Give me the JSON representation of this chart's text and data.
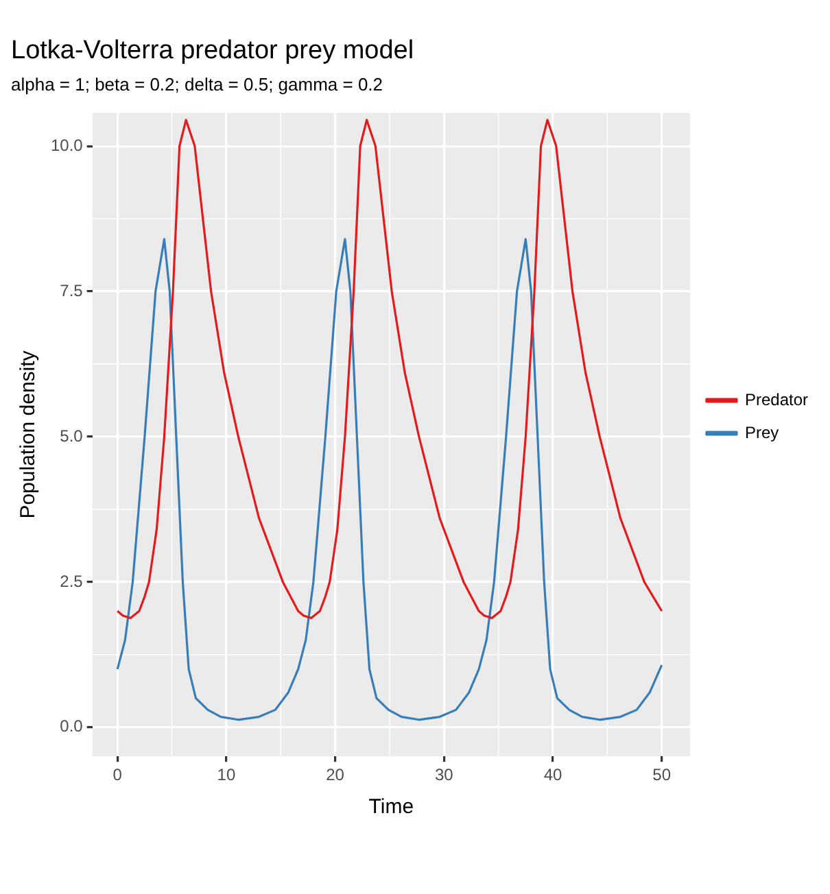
{
  "chart_data": {
    "type": "line",
    "title": "Lotka-Volterra predator prey model",
    "subtitle": "alpha = 1; beta = 0.2; delta = 0.5; gamma = 0.2",
    "xlabel": "Time",
    "ylabel": "Population density",
    "series": [
      {
        "name": "Predator",
        "color": "#e41a1c",
        "x": [
          0,
          0.5,
          1.2,
          2,
          2.5,
          2.9,
          3.6,
          4.3,
          5.1,
          5.7,
          6.3,
          7.1,
          8.6,
          9.8,
          11.1,
          13,
          15.2,
          16.6,
          17.1,
          17.8,
          18.6,
          19.1,
          19.5,
          20.2,
          20.9,
          21.7,
          22.3,
          22.9,
          23.7,
          25.2,
          26.4,
          27.7,
          29.6,
          31.8,
          33.2,
          33.7,
          34.4,
          35.2,
          35.7,
          36.1,
          36.8,
          37.5,
          38.3,
          38.9,
          39.5,
          40.3,
          41.8,
          43,
          44.3,
          46.2,
          48.4,
          50
        ],
        "values": [
          2.0,
          1.92,
          1.88,
          2.0,
          2.25,
          2.5,
          3.4,
          5.0,
          7.5,
          10.0,
          10.45,
          10.0,
          7.5,
          6.1,
          5.0,
          3.6,
          2.5,
          2.0,
          1.92,
          1.88,
          2.0,
          2.25,
          2.5,
          3.4,
          5.0,
          7.5,
          10.0,
          10.45,
          10.0,
          7.5,
          6.1,
          5.0,
          3.6,
          2.5,
          2.0,
          1.92,
          1.88,
          2.0,
          2.25,
          2.5,
          3.4,
          5.0,
          7.5,
          10.0,
          10.45,
          10.0,
          7.5,
          6.1,
          5.0,
          3.6,
          2.5,
          2.0
        ]
      },
      {
        "name": "Prey",
        "color": "#377eb8",
        "x": [
          0,
          0.7,
          1.4,
          2.5,
          3.5,
          4.3,
          4.8,
          5.4,
          6,
          6.55,
          7.2,
          8.3,
          9.5,
          11.1,
          13,
          14.5,
          15.7,
          16.6,
          17.3,
          18,
          19.1,
          20.1,
          20.9,
          21.4,
          22,
          22.6,
          23.15,
          23.8,
          24.9,
          26.1,
          27.7,
          29.6,
          31.1,
          32.3,
          33.2,
          33.9,
          34.6,
          35.7,
          36.7,
          37.5,
          38,
          38.6,
          39.2,
          39.75,
          40.4,
          41.5,
          42.7,
          44.3,
          46.2,
          47.7,
          48.9,
          50
        ],
        "values": [
          1.0,
          1.5,
          2.5,
          5.0,
          7.5,
          8.4,
          7.5,
          5.0,
          2.5,
          1.0,
          0.5,
          0.3,
          0.18,
          0.13,
          0.18,
          0.3,
          0.6,
          1.0,
          1.5,
          2.5,
          5.0,
          7.5,
          8.4,
          7.5,
          5.0,
          2.5,
          1.0,
          0.5,
          0.3,
          0.18,
          0.13,
          0.18,
          0.3,
          0.6,
          1.0,
          1.5,
          2.5,
          5.0,
          7.5,
          8.4,
          7.5,
          5.0,
          2.5,
          1.0,
          0.5,
          0.3,
          0.18,
          0.13,
          0.18,
          0.3,
          0.6,
          1.07
        ]
      }
    ],
    "xlim": [
      -2.3,
      52.6
    ],
    "xticks": [
      0,
      10,
      20,
      30,
      40,
      50
    ],
    "ylim": [
      -0.5,
      10.57
    ],
    "yticks": [
      {
        "value": 0,
        "label": "0.0"
      },
      {
        "value": 2.5,
        "label": "2.5"
      },
      {
        "value": 5,
        "label": "5.0"
      },
      {
        "value": 7.5,
        "label": "7.5"
      },
      {
        "value": 10,
        "label": "10.0"
      }
    ],
    "grid": true,
    "legend": "right",
    "marker": "none",
    "line_style": "solid"
  }
}
